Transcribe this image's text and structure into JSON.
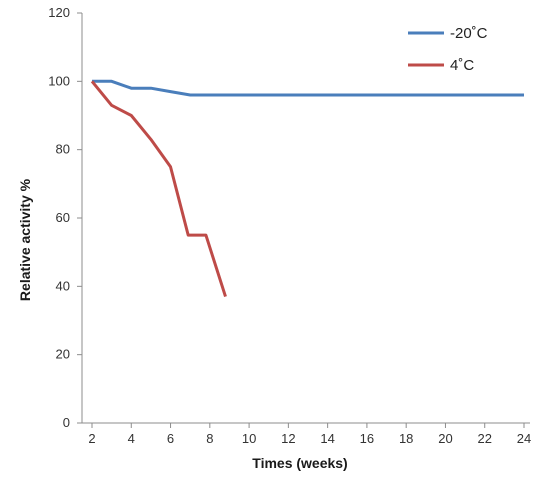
{
  "chart_data": {
    "type": "line",
    "title": "",
    "xlabel": "Times (weeks)",
    "ylabel": "Relative activity %",
    "xlim": [
      2,
      24
    ],
    "ylim": [
      0,
      120
    ],
    "x_ticks": [
      2,
      4,
      6,
      8,
      10,
      12,
      14,
      16,
      18,
      20,
      22,
      24
    ],
    "y_ticks": [
      0,
      20,
      40,
      60,
      80,
      100,
      120
    ],
    "grid": false,
    "legend_position": "top-right",
    "series": [
      {
        "name": "-20˚C",
        "color": "#4a7ebb",
        "x": [
          2,
          3,
          4,
          5,
          6,
          7,
          8,
          9,
          10,
          11,
          12,
          13,
          14,
          15,
          16,
          17,
          18,
          19,
          20,
          21,
          22,
          23,
          24
        ],
        "y": [
          100,
          100,
          98,
          98,
          97,
          96,
          96,
          96,
          96,
          96,
          96,
          96,
          96,
          96,
          96,
          96,
          96,
          96,
          96,
          96,
          96,
          96,
          96
        ]
      },
      {
        "name": "4˚C",
        "color": "#be4b48",
        "x": [
          2,
          3,
          4,
          5,
          6,
          6.9,
          7.8,
          8.8
        ],
        "y": [
          100,
          93,
          90,
          83,
          75,
          55,
          55,
          37
        ]
      }
    ]
  }
}
